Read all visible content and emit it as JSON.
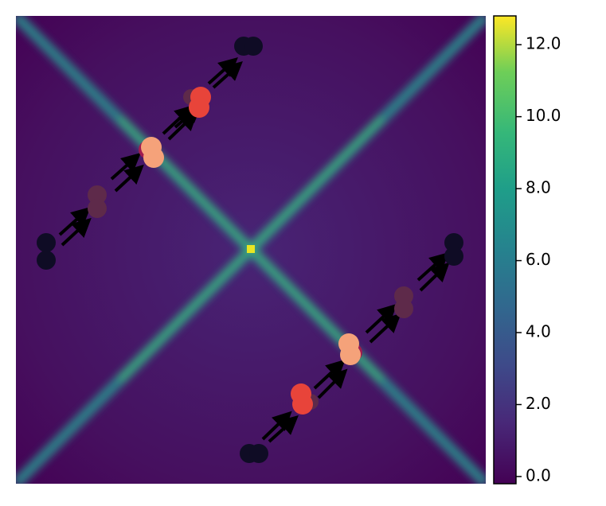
{
  "chart_data": {
    "type": "heatmap",
    "colormap": "viridis",
    "clim": [
      -0.2,
      12.8
    ],
    "cticks": [
      {
        "value": 0,
        "label": "0.0"
      },
      {
        "value": 2,
        "label": "2.0"
      },
      {
        "value": 4,
        "label": "4.0"
      },
      {
        "value": 6,
        "label": "6.0"
      },
      {
        "value": 8,
        "label": "8.0"
      },
      {
        "value": 10,
        "label": "10.0"
      },
      {
        "value": 12,
        "label": "12.0"
      }
    ]
  }
}
